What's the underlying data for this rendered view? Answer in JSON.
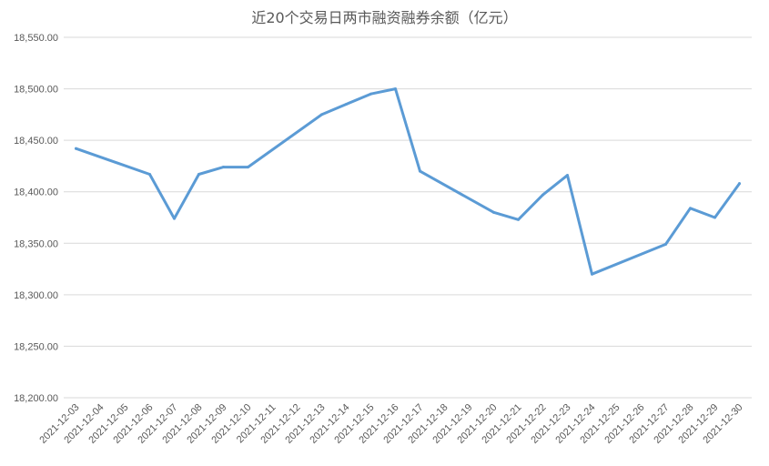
{
  "chart_data": {
    "type": "line",
    "title": "近20个交易日两市融资融券余额（亿元）",
    "xlabel": "",
    "ylabel": "",
    "ylim": [
      18200,
      18550
    ],
    "yticks": [
      "18,200.00",
      "18,250.00",
      "18,300.00",
      "18,350.00",
      "18,400.00",
      "18,450.00",
      "18,500.00",
      "18,550.00"
    ],
    "grid": true,
    "legend": "none",
    "line_color": "#5b9bd5",
    "categories": [
      "2021-12-03",
      "2021-12-04",
      "2021-12-05",
      "2021-12-06",
      "2021-12-07",
      "2021-12-08",
      "2021-12-09",
      "2021-12-10",
      "2021-12-11",
      "2021-12-12",
      "2021-12-13",
      "2021-12-14",
      "2021-12-15",
      "2021-12-16",
      "2021-12-17",
      "2021-12-18",
      "2021-12-19",
      "2021-12-20",
      "2021-12-21",
      "2021-12-22",
      "2021-12-23",
      "2021-12-24",
      "2021-12-25",
      "2021-12-26",
      "2021-12-27",
      "2021-12-28",
      "2021-12-29",
      "2021-12-30"
    ],
    "points": [
      {
        "x": "2021-12-03",
        "y": 18442
      },
      {
        "x": "2021-12-06",
        "y": 18417
      },
      {
        "x": "2021-12-07",
        "y": 18374
      },
      {
        "x": "2021-12-08",
        "y": 18417
      },
      {
        "x": "2021-12-09",
        "y": 18424
      },
      {
        "x": "2021-12-10",
        "y": 18424
      },
      {
        "x": "2021-12-13",
        "y": 18475
      },
      {
        "x": "2021-12-14",
        "y": 18485
      },
      {
        "x": "2021-12-15",
        "y": 18495
      },
      {
        "x": "2021-12-16",
        "y": 18500
      },
      {
        "x": "2021-12-17",
        "y": 18420
      },
      {
        "x": "2021-12-20",
        "y": 18380
      },
      {
        "x": "2021-12-21",
        "y": 18373
      },
      {
        "x": "2021-12-22",
        "y": 18397
      },
      {
        "x": "2021-12-23",
        "y": 18416
      },
      {
        "x": "2021-12-24",
        "y": 18320
      },
      {
        "x": "2021-12-27",
        "y": 18349
      },
      {
        "x": "2021-12-28",
        "y": 18384
      },
      {
        "x": "2021-12-29",
        "y": 18375
      },
      {
        "x": "2021-12-30",
        "y": 18408
      }
    ]
  }
}
